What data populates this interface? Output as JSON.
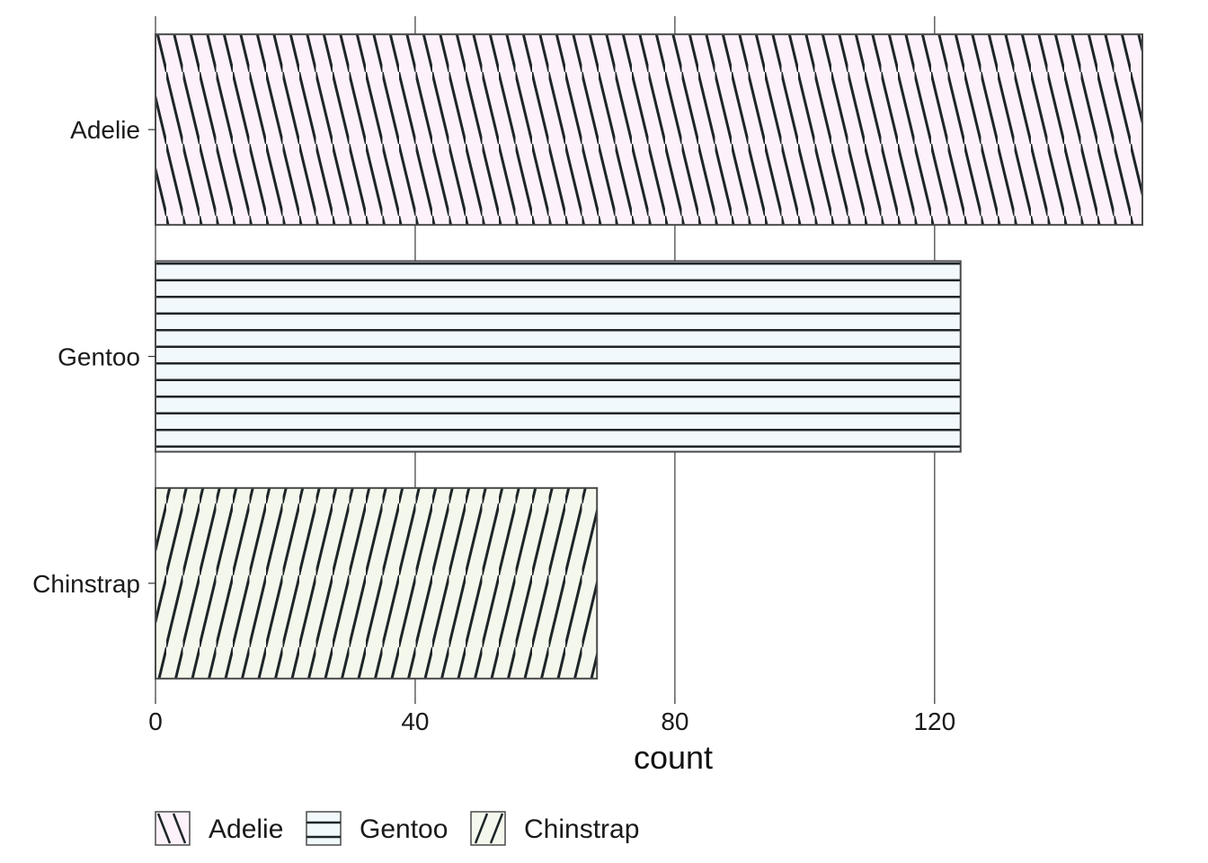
{
  "chart_data": {
    "type": "bar",
    "orientation": "horizontal",
    "categories": [
      "Adelie",
      "Gentoo",
      "Chinstrap"
    ],
    "values": [
      152,
      124,
      68
    ],
    "xlabel": "count",
    "ylabel": "",
    "xlim": [
      0,
      152
    ],
    "x_ticks": [
      0,
      40,
      80,
      120
    ],
    "grid": true,
    "legend": {
      "position": "bottom",
      "entries": [
        "Adelie",
        "Gentoo",
        "Chinstrap"
      ]
    },
    "colors": {
      "Adelie": "#fdf2fb",
      "Gentoo": "#f1f9fd",
      "Chinstrap": "#f4f8ec",
      "pattern_line": "#1e2528",
      "bar_border": "#4a4a4a",
      "grid": "#3a3a3a"
    },
    "patterns": {
      "Adelie": "stripe-backslash",
      "Gentoo": "stripe-horizontal",
      "Chinstrap": "stripe-slash"
    }
  }
}
